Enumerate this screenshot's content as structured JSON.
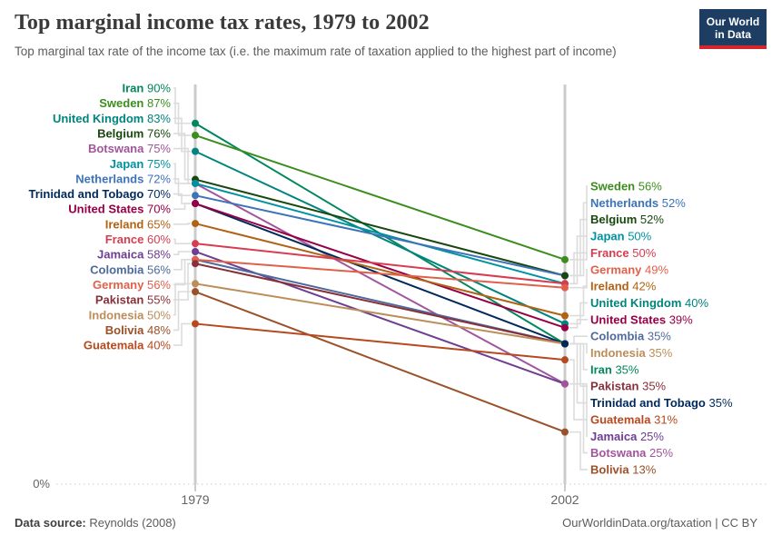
{
  "header": {
    "title": "Top marginal income tax rates, 1979 to 2002",
    "subtitle": "Top marginal tax rate of the income tax (i.e. the maximum rate of taxation applied to the highest part of income)",
    "logo": {
      "line1": "Our World",
      "line2": "in Data"
    }
  },
  "chart_data": {
    "type": "slope",
    "x": [
      1979,
      2002
    ],
    "x_labels": [
      "1979",
      "2002"
    ],
    "zero_label": "0%",
    "ylim": [
      0,
      100
    ],
    "unit": "%",
    "series": [
      {
        "name": "Iran",
        "color": "#00875E",
        "values": [
          90,
          35
        ]
      },
      {
        "name": "Sweden",
        "color": "#3B8E1D",
        "values": [
          87,
          56
        ]
      },
      {
        "name": "United Kingdom",
        "color": "#00847E",
        "values": [
          83,
          40
        ]
      },
      {
        "name": "Belgium",
        "color": "#18470F",
        "values": [
          76,
          52
        ]
      },
      {
        "name": "Botswana",
        "color": "#A2559C",
        "values": [
          75,
          25
        ]
      },
      {
        "name": "Japan",
        "color": "#00929F",
        "values": [
          75,
          50
        ]
      },
      {
        "name": "Netherlands",
        "color": "#3D73B8",
        "values": [
          72,
          52
        ]
      },
      {
        "name": "Trinidad and Tobago",
        "color": "#00295B",
        "values": [
          70,
          35
        ]
      },
      {
        "name": "United States",
        "color": "#970046",
        "values": [
          70,
          39
        ]
      },
      {
        "name": "Ireland",
        "color": "#B16214",
        "values": [
          65,
          42
        ]
      },
      {
        "name": "France",
        "color": "#D73C50",
        "values": [
          60,
          50
        ]
      },
      {
        "name": "Jamaica",
        "color": "#6D3E91",
        "values": [
          58,
          25
        ]
      },
      {
        "name": "Colombia",
        "color": "#4C6A9C",
        "values": [
          56,
          35
        ]
      },
      {
        "name": "Germany",
        "color": "#E0604A",
        "values": [
          56,
          49
        ]
      },
      {
        "name": "Pakistan",
        "color": "#883039",
        "values": [
          55,
          35
        ]
      },
      {
        "name": "Indonesia",
        "color": "#BC8E5A",
        "values": [
          50,
          35
        ]
      },
      {
        "name": "Bolivia",
        "color": "#9A5129",
        "values": [
          48,
          13
        ]
      },
      {
        "name": "Guatemala",
        "color": "#B6491F",
        "values": [
          40,
          31
        ]
      }
    ],
    "left_label_order": [
      "Iran",
      "Sweden",
      "United Kingdom",
      "Belgium",
      "Botswana",
      "Japan",
      "Netherlands",
      "Trinidad and Tobago",
      "United States",
      "Ireland",
      "France",
      "Jamaica",
      "Colombia",
      "Germany",
      "Pakistan",
      "Indonesia",
      "Bolivia",
      "Guatemala"
    ],
    "right_label_order": [
      "Sweden",
      "Netherlands",
      "Belgium",
      "Japan",
      "France",
      "Germany",
      "Ireland",
      "United Kingdom",
      "United States",
      "Colombia",
      "Indonesia",
      "Iran",
      "Pakistan",
      "Trinidad and Tobago",
      "Guatemala",
      "Jamaica",
      "Botswana",
      "Bolivia"
    ]
  },
  "footer": {
    "source_label": "Data source:",
    "source_value": " Reynolds (2008)",
    "right_text": "OurWorldinData.org/taxation | CC BY"
  }
}
